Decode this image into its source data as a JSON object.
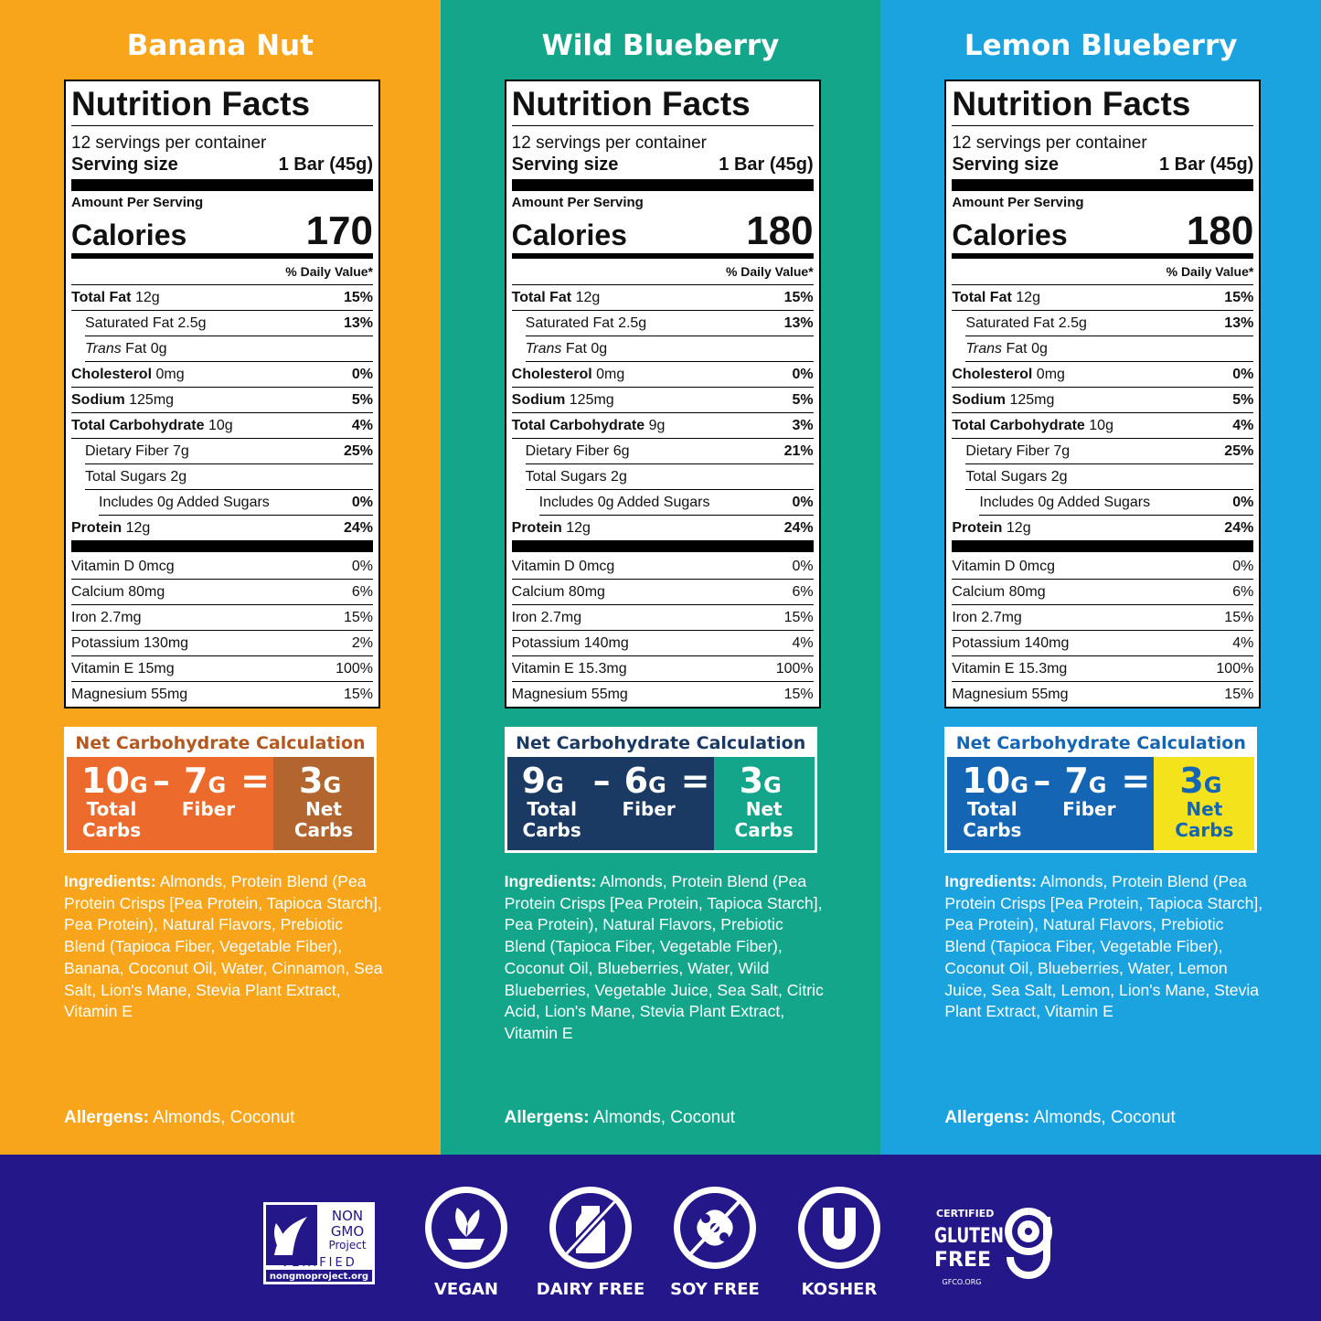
{
  "products": [
    {
      "name": "Banana Nut",
      "theme": {
        "background": "#f8a51c",
        "carb_title": "#b4581f",
        "carb_left": "#ec6b2c",
        "carb_right": "#b3652f",
        "carb_right_text": "#ffffff"
      },
      "nutrition": {
        "title": "Nutrition Facts",
        "servings": "12 servings per container",
        "serving_size_label": "Serving size",
        "serving_size": "1 Bar (45g)",
        "amount_per_serving": "Amount Per Serving",
        "calories_label": "Calories",
        "calories": "170",
        "daily_value_header": "% Daily Value*",
        "rows": [
          {
            "label": "Total Fat",
            "amount": "12g",
            "dv": "15%",
            "bold": true,
            "indent": 0
          },
          {
            "label": "Saturated Fat",
            "amount": "2.5g",
            "dv": "13%",
            "indent": 1
          },
          {
            "label_italic": "Trans",
            "label": "Fat",
            "amount": "0g",
            "indent": 1
          },
          {
            "label": "Cholesterol",
            "amount": "0mg",
            "dv": "0%",
            "bold": true,
            "indent": 0
          },
          {
            "label": "Sodium",
            "amount": "125mg",
            "dv": "5%",
            "bold": true,
            "indent": 0
          },
          {
            "label": "Total Carbohydrate",
            "amount": "10g",
            "dv": "4%",
            "bold": true,
            "indent": 0
          },
          {
            "label": "Dietary Fiber",
            "amount": "7g",
            "dv": "25%",
            "indent": 1
          },
          {
            "label": "Total Sugars",
            "amount": "2g",
            "indent": 1
          },
          {
            "label": "Includes 0g Added Sugars",
            "dv": "0%",
            "indent": 2
          },
          {
            "label": "Protein",
            "amount": "12g",
            "dv": "24%",
            "bold": true,
            "indent": 0
          }
        ],
        "vitamins": [
          {
            "label": "Vitamin D 0mcg",
            "dv": "0%"
          },
          {
            "label": "Calcium 80mg",
            "dv": "6%"
          },
          {
            "label": "Iron 2.7mg",
            "dv": "15%"
          },
          {
            "label": "Potassium 130mg",
            "dv": "2%"
          },
          {
            "label": "Vitamin E 15mg",
            "dv": "100%"
          },
          {
            "label": "Magnesium 55mg",
            "dv": "15%"
          }
        ]
      },
      "net_carbs": {
        "title": "Net Carbohydrate Calculation",
        "total": "10",
        "fiber": "7",
        "net": "3",
        "unit": "G",
        "minus": "–",
        "equals": "=",
        "total_label": "Total Carbs",
        "fiber_label": "Fiber",
        "net_label": "Net Carbs"
      },
      "ingredients_label": "Ingredients:",
      "ingredients": "Almonds, Protein Blend (Pea Protein Crisps [Pea Protein, Tapioca Starch], Pea Protein), Natural Flavors, Prebiotic Blend (Tapioca Fiber, Vegetable Fiber), Banana, Coconut Oil, Water, Cinnamon, Sea Salt, Lion's Mane, Stevia Plant Extract, Vitamin E",
      "allergens_label": "Allergens:",
      "allergens": "Almonds, Coconut"
    },
    {
      "name": "Wild Blueberry",
      "theme": {
        "background": "#14a68a",
        "carb_title": "#1b3a63",
        "carb_left": "#1b3a63",
        "carb_right": "#14a68a",
        "carb_right_text": "#ffffff"
      },
      "nutrition": {
        "title": "Nutrition Facts",
        "servings": "12 servings per container",
        "serving_size_label": "Serving size",
        "serving_size": "1 Bar (45g)",
        "amount_per_serving": "Amount Per Serving",
        "calories_label": "Calories",
        "calories": "180",
        "daily_value_header": "% Daily Value*",
        "rows": [
          {
            "label": "Total Fat",
            "amount": "12g",
            "dv": "15%",
            "bold": true,
            "indent": 0
          },
          {
            "label": "Saturated Fat",
            "amount": "2.5g",
            "dv": "13%",
            "indent": 1
          },
          {
            "label_italic": "Trans",
            "label": "Fat",
            "amount": "0g",
            "indent": 1
          },
          {
            "label": "Cholesterol",
            "amount": "0mg",
            "dv": "0%",
            "bold": true,
            "indent": 0
          },
          {
            "label": "Sodium",
            "amount": "125mg",
            "dv": "5%",
            "bold": true,
            "indent": 0
          },
          {
            "label": "Total Carbohydrate",
            "amount": "9g",
            "dv": "3%",
            "bold": true,
            "indent": 0
          },
          {
            "label": "Dietary Fiber",
            "amount": "6g",
            "dv": "21%",
            "indent": 1
          },
          {
            "label": "Total Sugars",
            "amount": "2g",
            "indent": 1
          },
          {
            "label": "Includes 0g Added Sugars",
            "dv": "0%",
            "indent": 2
          },
          {
            "label": "Protein",
            "amount": "12g",
            "dv": "24%",
            "bold": true,
            "indent": 0
          }
        ],
        "vitamins": [
          {
            "label": "Vitamin D 0mcg",
            "dv": "0%"
          },
          {
            "label": "Calcium 80mg",
            "dv": "6%"
          },
          {
            "label": "Iron 2.7mg",
            "dv": "15%"
          },
          {
            "label": "Potassium 140mg",
            "dv": "4%"
          },
          {
            "label": "Vitamin E 15.3mg",
            "dv": "100%"
          },
          {
            "label": "Magnesium 55mg",
            "dv": "15%"
          }
        ]
      },
      "net_carbs": {
        "title": "Net Carbohydrate Calculation",
        "total": "9",
        "fiber": "6",
        "net": "3",
        "unit": "G",
        "minus": "–",
        "equals": "=",
        "total_label": "Total Carbs",
        "fiber_label": "Fiber",
        "net_label": "Net Carbs"
      },
      "ingredients_label": "Ingredients:",
      "ingredients": "Almonds, Protein Blend (Pea Protein Crisps [Pea Protein, Tapioca Starch], Pea Protein), Natural Flavors, Prebiotic Blend (Tapioca Fiber, Vegetable Fiber), Coconut Oil, Blueberries, Water, Wild Blueberries, Vegetable Juice, Sea Salt, Citric Acid, Lion's Mane, Stevia Plant Extract, Vitamin E",
      "allergens_label": "Allergens:",
      "allergens": "Almonds, Coconut"
    },
    {
      "name": "Lemon Blueberry",
      "theme": {
        "background": "#1ba3e0",
        "carb_title": "#1565b5",
        "carb_left": "#1565b5",
        "carb_right": "#f4e31c",
        "carb_right_text": "#1565b5"
      },
      "nutrition": {
        "title": "Nutrition Facts",
        "servings": "12 servings per container",
        "serving_size_label": "Serving size",
        "serving_size": "1 Bar (45g)",
        "amount_per_serving": "Amount Per Serving",
        "calories_label": "Calories",
        "calories": "180",
        "daily_value_header": "% Daily Value*",
        "rows": [
          {
            "label": "Total Fat",
            "amount": "12g",
            "dv": "15%",
            "bold": true,
            "indent": 0
          },
          {
            "label": "Saturated Fat",
            "amount": "2.5g",
            "dv": "13%",
            "indent": 1
          },
          {
            "label_italic": "Trans",
            "label": "Fat",
            "amount": "0g",
            "indent": 1
          },
          {
            "label": "Cholesterol",
            "amount": "0mg",
            "dv": "0%",
            "bold": true,
            "indent": 0
          },
          {
            "label": "Sodium",
            "amount": "125mg",
            "dv": "5%",
            "bold": true,
            "indent": 0
          },
          {
            "label": "Total Carbohydrate",
            "amount": "10g",
            "dv": "4%",
            "bold": true,
            "indent": 0
          },
          {
            "label": "Dietary Fiber",
            "amount": "7g",
            "dv": "25%",
            "indent": 1
          },
          {
            "label": "Total Sugars",
            "amount": "2g",
            "indent": 1
          },
          {
            "label": "Includes 0g Added Sugars",
            "dv": "0%",
            "indent": 2
          },
          {
            "label": "Protein",
            "amount": "12g",
            "dv": "24%",
            "bold": true,
            "indent": 0
          }
        ],
        "vitamins": [
          {
            "label": "Vitamin D 0mcg",
            "dv": "0%"
          },
          {
            "label": "Calcium 80mg",
            "dv": "6%"
          },
          {
            "label": "Iron 2.7mg",
            "dv": "15%"
          },
          {
            "label": "Potassium 140mg",
            "dv": "4%"
          },
          {
            "label": "Vitamin E 15.3mg",
            "dv": "100%"
          },
          {
            "label": "Magnesium 55mg",
            "dv": "15%"
          }
        ]
      },
      "net_carbs": {
        "title": "Net Carbohydrate Calculation",
        "total": "10",
        "fiber": "7",
        "net": "3",
        "unit": "G",
        "minus": "–",
        "equals": "=",
        "total_label": "Total Carbs",
        "fiber_label": "Fiber",
        "net_label": "Net Carbs"
      },
      "ingredients_label": "Ingredients:",
      "ingredients": "Almonds, Protein Blend (Pea Protein Crisps [Pea Protein, Tapioca Starch], Pea Protein), Natural Flavors, Prebiotic Blend (Tapioca Fiber, Vegetable Fiber), Coconut Oil, Blueberries, Water, Lemon Juice, Sea Salt, Lemon, Lion's Mane, Stevia Plant Extract, Vitamin E",
      "allergens_label": "Allergens:",
      "allergens": "Almonds, Coconut"
    }
  ],
  "badges": {
    "non_gmo": {
      "line1": "NON",
      "line2": "GMO",
      "line3": "Project",
      "verified": "VERIFIED",
      "url": "nongmoproject.org"
    },
    "icons": [
      "VEGAN",
      "DAIRY FREE",
      "SOY FREE",
      "KOSHER"
    ],
    "gluten_free": {
      "certified": "CERTIFIED",
      "line1": "GLUTEN",
      "line2": "FREE",
      "url": "GFCO.ORG"
    }
  }
}
